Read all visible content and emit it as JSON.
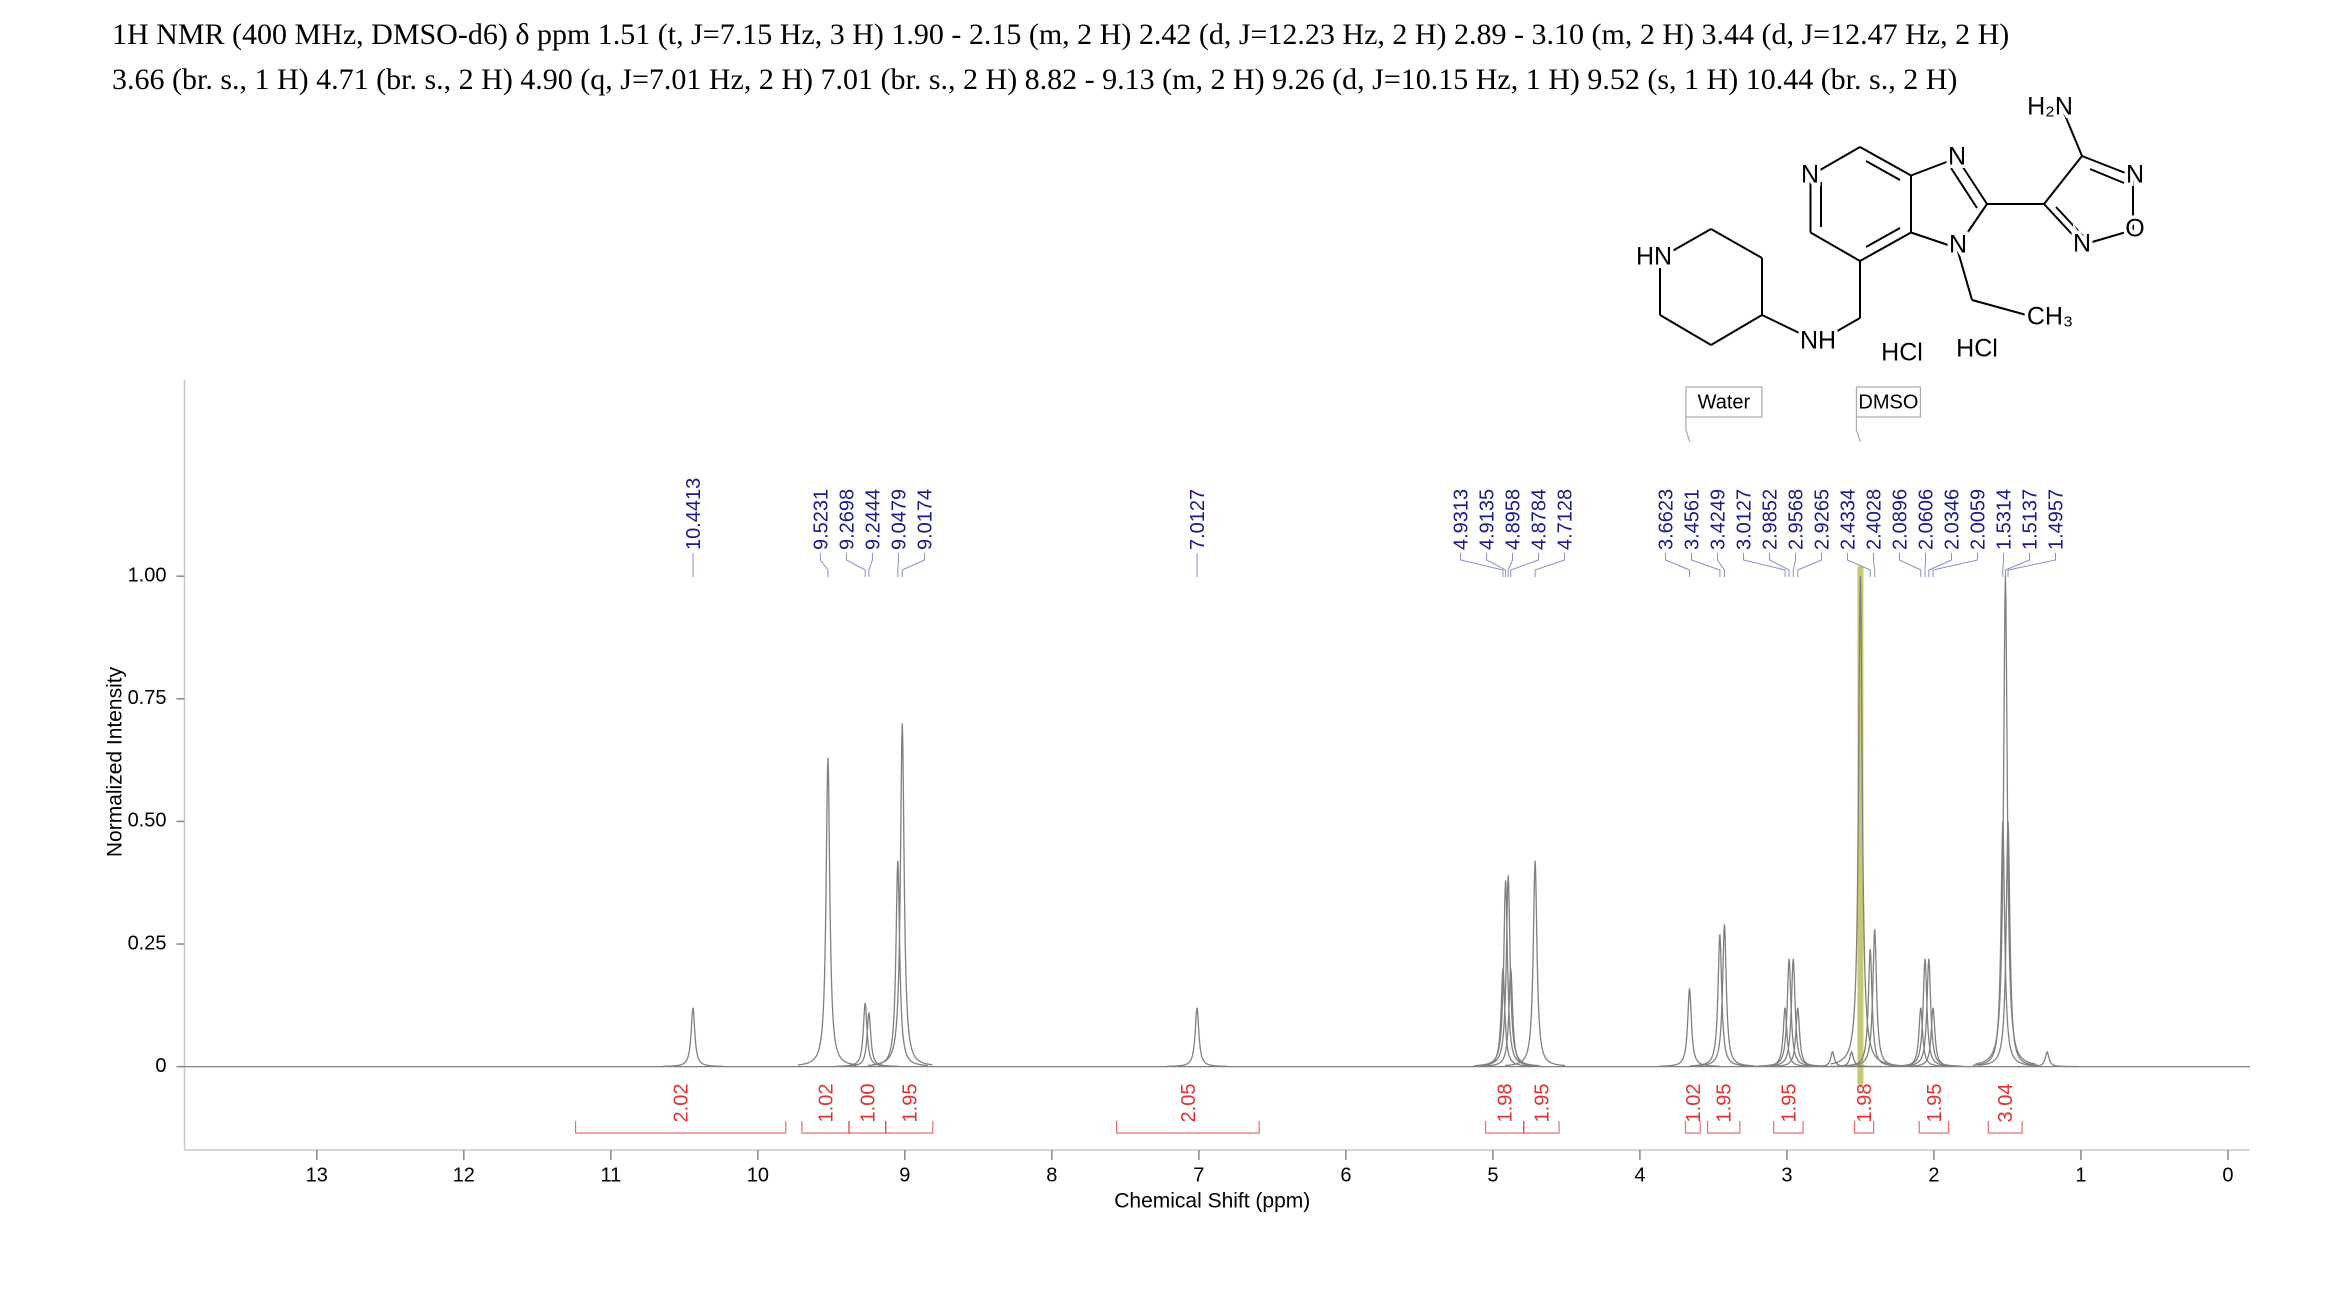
{
  "chart_data": {
    "type": "nmr",
    "header_lines": [
      "1H NMR (400 MHz, DMSO-d6) δ ppm 1.51 (t, J=7.15 Hz, 3 H) 1.90 - 2.15 (m, 2 H) 2.42 (d, J=12.23 Hz, 2 H) 2.89 - 3.10 (m, 2 H) 3.44 (d, J=12.47 Hz, 2 H)",
      "3.66 (br. s., 1 H) 4.71 (br. s., 2 H) 4.90 (q, J=7.01 Hz, 2 H) 7.01 (br. s., 2 H) 8.82 - 9.13 (m, 2 H) 9.26 (d, J=10.15 Hz, 1 H) 9.52 (s, 1 H) 10.44 (br. s., 2 H)"
    ],
    "x_label": "Chemical Shift (ppm)",
    "y_label": "Normalized Intensity",
    "xlim": [
      13.9,
      -0.15
    ],
    "ylim": [
      -0.17,
      1.4
    ],
    "xticks": [
      13,
      12,
      11,
      10,
      9,
      8,
      7,
      6,
      5,
      4,
      3,
      2,
      1,
      0
    ],
    "yticks": [
      0,
      0.25,
      {
        "value": 0.5,
        "label": "0.50"
      },
      0.75,
      {
        "value": 1,
        "label": "1.00"
      }
    ],
    "spectrum": {
      "color": "#808080",
      "x": [
        10.4413,
        9.5231,
        9.2698,
        9.2444,
        9.0479,
        9.0174,
        7.0127,
        4.9313,
        4.9135,
        4.8958,
        4.8784,
        4.7128,
        3.6623,
        3.4561,
        3.4249,
        3.0127,
        2.9852,
        2.9568,
        2.9265,
        2.69,
        2.56,
        2.5,
        2.4334,
        2.4028,
        2.0896,
        2.0606,
        2.0346,
        2.0059,
        1.5314,
        1.5137,
        1.4957,
        1.23
      ],
      "values": [
        0.12,
        0.63,
        0.13,
        0.11,
        0.42,
        0.7,
        0.12,
        0.2,
        0.38,
        0.39,
        0.2,
        0.42,
        0.16,
        0.27,
        0.29,
        0.12,
        0.22,
        0.22,
        0.12,
        0.03,
        0.03,
        1.0,
        0.24,
        0.28,
        0.12,
        0.22,
        0.22,
        0.12,
        0.5,
        1.0,
        0.5,
        0.03
      ]
    },
    "peak_picks": [
      10.4413,
      9.5231,
      9.2698,
      9.2444,
      9.0479,
      9.0174,
      7.0127,
      4.9313,
      4.9135,
      4.8958,
      4.8784,
      4.7128,
      3.6623,
      3.4561,
      3.4249,
      3.0127,
      2.9852,
      2.9568,
      2.9265,
      2.4334,
      2.4028,
      2.0896,
      2.0606,
      2.0346,
      2.0059,
      1.5314,
      1.5137,
      1.4957
    ],
    "peak_pick_color": "#1a1a8c",
    "integrals": {
      "color": "#e03030",
      "ranges": [
        [
          11.24,
          9.81
        ],
        [
          9.7,
          9.38
        ],
        [
          9.38,
          9.13
        ],
        [
          9.13,
          8.81
        ],
        [
          7.56,
          6.59
        ],
        [
          5.05,
          4.79
        ],
        [
          4.79,
          4.55
        ],
        [
          3.69,
          3.59
        ],
        [
          3.54,
          3.32
        ],
        [
          3.09,
          2.89
        ],
        [
          2.54,
          2.41
        ],
        [
          2.1,
          1.9
        ],
        [
          1.63,
          1.4
        ]
      ],
      "values": [
        2.02,
        1.02,
        1.0,
        1.95,
        2.05,
        1.98,
        1.95,
        1.02,
        1.95,
        1.95,
        1.98,
        1.95,
        3.04
      ],
      "value_labels": [
        "2.02",
        "1.02",
        "1.00",
        "1.95",
        "2.05",
        "1.98",
        "1.95",
        "1.02",
        "1.95",
        "1.95",
        "1.98",
        "1.95",
        "3.04"
      ]
    },
    "annotations": [
      {
        "text": "Water",
        "x": 3.66
      },
      {
        "text": "DMSO",
        "x": 2.5
      }
    ],
    "solvent_color": "#c8c870",
    "structure": {
      "labels": [
        "N",
        "N",
        "N",
        "H₂N",
        "N",
        "O",
        "N",
        "CH₃",
        "NH",
        "HN",
        "HCl",
        "HCl"
      ]
    }
  }
}
